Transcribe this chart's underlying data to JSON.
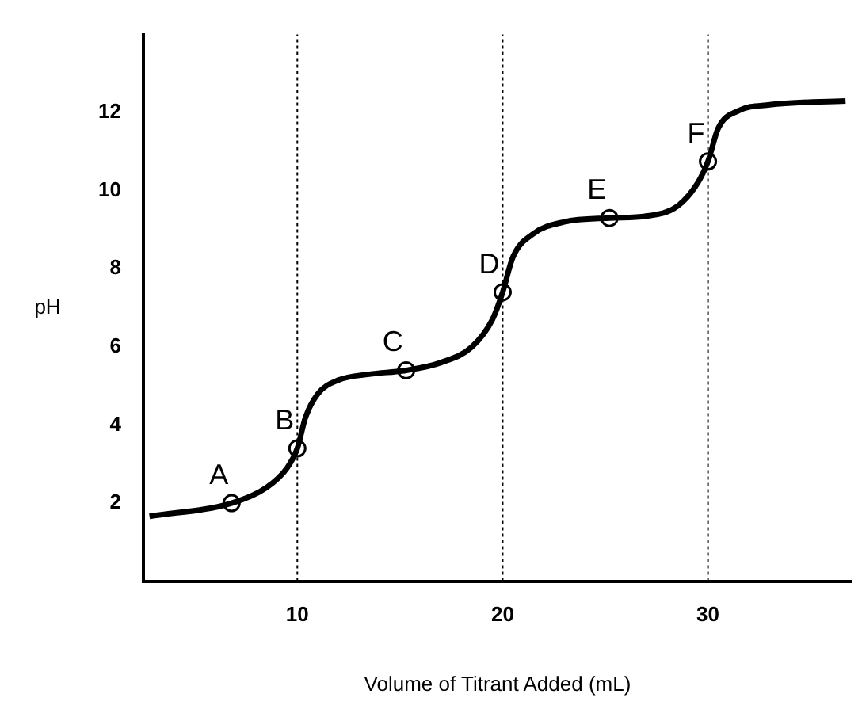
{
  "chart_data": {
    "type": "line",
    "xlabel": "Volume of Titrant Added (mL)",
    "ylabel": "pH",
    "xlim": [
      2.5,
      37
    ],
    "xticks": [
      10,
      20,
      30
    ],
    "ylim": [
      0,
      14
    ],
    "yticks": [
      2,
      4,
      6,
      8,
      10,
      12
    ],
    "grid": false,
    "legend": false,
    "series": [
      {
        "type": "line",
        "color": "#000000",
        "marker": "none",
        "x": [
          2.8,
          6.8,
          8.5,
          9.5,
          10,
          10.4,
          11,
          12,
          13.5,
          15.3,
          17,
          18.5,
          19.5,
          20,
          20.5,
          21.5,
          23,
          25.2,
          27,
          28.5,
          29.5,
          30,
          30.5,
          31.5,
          33,
          36.7
        ],
        "values": [
          1.66,
          2.0,
          2.4,
          2.9,
          3.4,
          4.2,
          4.8,
          5.15,
          5.3,
          5.4,
          5.6,
          6.0,
          6.7,
          7.4,
          8.3,
          8.9,
          9.2,
          9.3,
          9.35,
          9.6,
          10.2,
          10.75,
          11.6,
          12.05,
          12.2,
          12.3
        ]
      },
      {
        "type": "scatter",
        "color": "#000000",
        "marker": "circle",
        "x": [
          6.8,
          10,
          15.3,
          20,
          25.2,
          30
        ],
        "values": [
          2.0,
          3.4,
          5.4,
          7.4,
          9.3,
          10.75
        ]
      }
    ],
    "ref_lines": [
      {
        "axis": "x",
        "value": 10,
        "line_style": "dotted"
      },
      {
        "axis": "x",
        "value": 20,
        "line_style": "dotted"
      },
      {
        "axis": "x",
        "value": 30,
        "line_style": "dotted"
      }
    ],
    "annotations": [
      {
        "text": "A",
        "x": 6.8,
        "y": 2.0
      },
      {
        "text": "B",
        "x": 10,
        "y": 3.4
      },
      {
        "text": "C",
        "x": 15.3,
        "y": 5.4
      },
      {
        "text": "D",
        "x": 20,
        "y": 7.4
      },
      {
        "text": "E",
        "x": 25.2,
        "y": 9.3
      },
      {
        "text": "F",
        "x": 30,
        "y": 10.75
      }
    ]
  }
}
